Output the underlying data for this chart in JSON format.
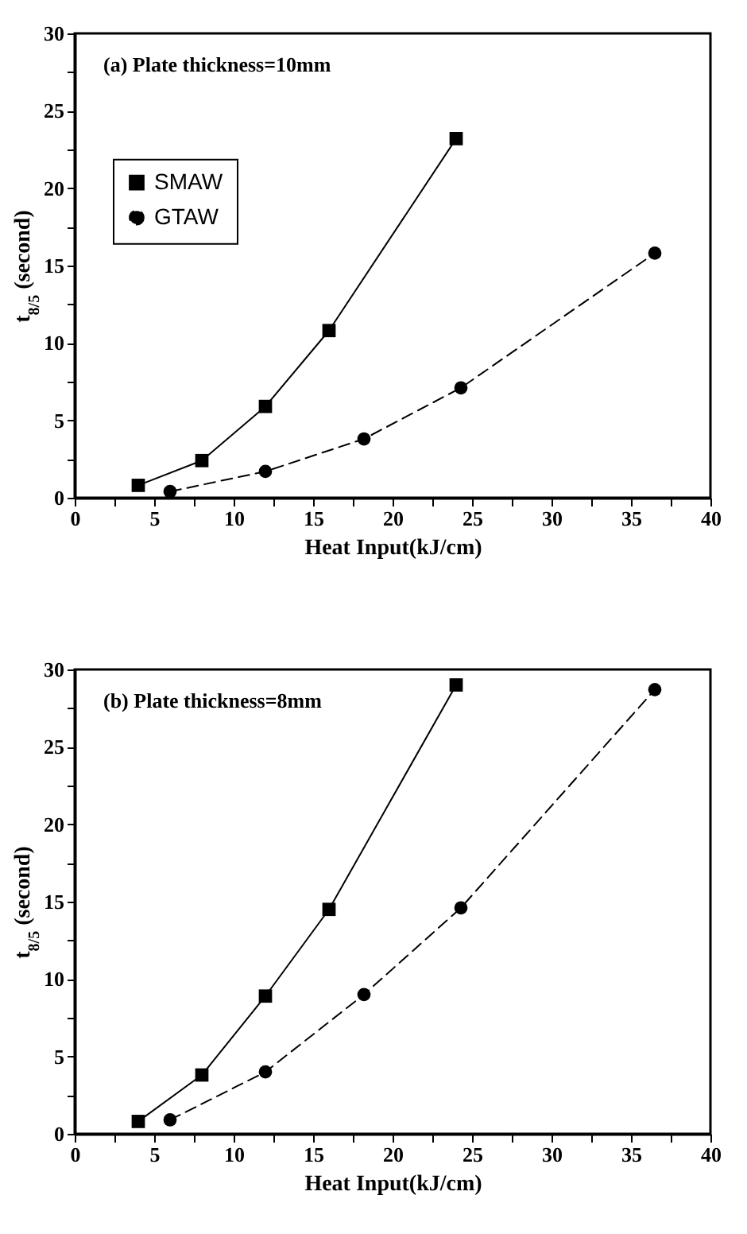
{
  "chart_data": [
    {
      "type": "line",
      "xlabel": "Heat Input(kJ/cm)",
      "ylabel": "t$_{8/5}$ (second)",
      "annotations": [
        "(a)   Plate thickness=10mm"
      ],
      "legend": "top left",
      "xlim": [
        0,
        40
      ],
      "ylim": [
        0,
        30
      ],
      "xticks": [
        0,
        {
          "value": 2.5,
          "label": null
        },
        5,
        {
          "value": 7.5,
          "label": null
        },
        10,
        {
          "value": 12.5,
          "label": null
        },
        15,
        {
          "value": 17.5,
          "label": null
        },
        20,
        {
          "value": 22.5,
          "label": null
        },
        25,
        {
          "value": 27.5,
          "label": null
        },
        30,
        {
          "value": 32.5,
          "label": null
        },
        35,
        {
          "value": 37.5,
          "label": null
        },
        40
      ],
      "yticks": [
        0,
        {
          "value": 2.5,
          "label": null
        },
        5,
        {
          "value": 7.5,
          "label": null
        },
        10,
        {
          "value": 12.5,
          "label": null
        },
        15,
        {
          "value": 17.5,
          "label": null
        },
        20,
        {
          "value": 22.5,
          "label": null
        },
        25,
        {
          "value": 27.5,
          "label": null
        },
        30
      ],
      "series": [
        {
          "name": "SMAW",
          "color": "#000000",
          "marker": "square",
          "line_style": "solid",
          "x": [
            4,
            8,
            12,
            16,
            24
          ],
          "values": [
            0.8,
            2.4,
            5.9,
            10.8,
            23.2
          ]
        },
        {
          "name": "GTAW",
          "color": "#000000",
          "marker": "circle",
          "line_style": "dashed",
          "x": [
            6,
            12,
            18.2,
            24.3,
            36.5
          ],
          "values": [
            0.4,
            1.7,
            3.8,
            7.1,
            15.8
          ]
        }
      ]
    },
    {
      "type": "line",
      "xlabel": "Heat Input(kJ/cm)",
      "ylabel": "t$_{8/5}$ (second)",
      "annotations": [
        "(b)   Plate thickness=8mm"
      ],
      "xlim": [
        0,
        40
      ],
      "ylim": [
        0,
        30
      ],
      "xticks": [
        0,
        {
          "value": 2.5,
          "label": null
        },
        5,
        {
          "value": 7.5,
          "label": null
        },
        10,
        {
          "value": 12.5,
          "label": null
        },
        15,
        {
          "value": 17.5,
          "label": null
        },
        20,
        {
          "value": 22.5,
          "label": null
        },
        25,
        {
          "value": 27.5,
          "label": null
        },
        30,
        {
          "value": 32.5,
          "label": null
        },
        35,
        {
          "value": 37.5,
          "label": null
        },
        40
      ],
      "yticks": [
        0,
        {
          "value": 2.5,
          "label": null
        },
        5,
        {
          "value": 7.5,
          "label": null
        },
        10,
        {
          "value": 12.5,
          "label": null
        },
        15,
        {
          "value": 17.5,
          "label": null
        },
        20,
        {
          "value": 22.5,
          "label": null
        },
        25,
        {
          "value": 27.5,
          "label": null
        },
        30
      ],
      "series": [
        {
          "color": "#000000",
          "marker": "square",
          "line_style": "solid",
          "x": [
            4,
            8,
            12,
            16,
            24
          ],
          "values": [
            0.8,
            3.8,
            8.9,
            14.5,
            29
          ]
        },
        {
          "color": "#000000",
          "marker": "circle",
          "line_style": "dashed",
          "x": [
            6,
            12,
            18.2,
            24.3,
            36.5
          ],
          "values": [
            0.9,
            4,
            9,
            14.6,
            28.7
          ]
        }
      ]
    }
  ]
}
